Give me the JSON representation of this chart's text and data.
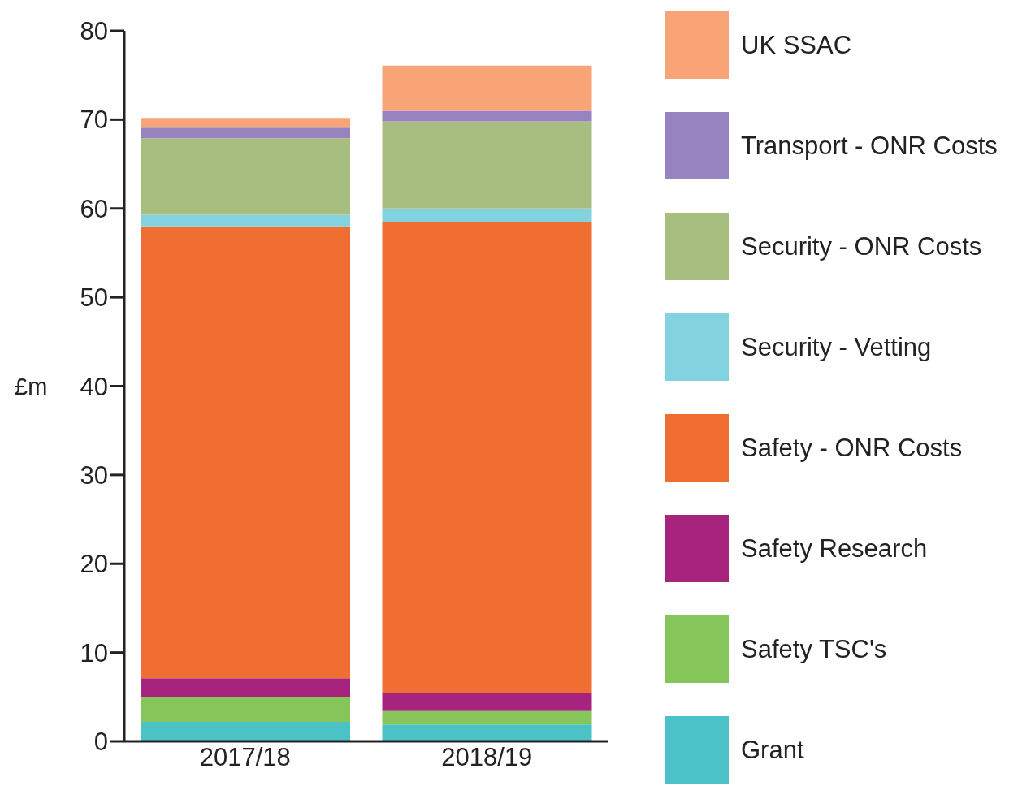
{
  "chart_data": {
    "type": "bar",
    "stacked": true,
    "ylabel": "£m",
    "categories": [
      "2017/18",
      "2018/19"
    ],
    "series": [
      {
        "name": "Grant",
        "color": "#4ac2c6",
        "values": [
          2.2,
          1.9
        ]
      },
      {
        "name": "Safety TSC's",
        "color": "#86c55a",
        "values": [
          2.8,
          1.5
        ]
      },
      {
        "name": "Safety Research",
        "color": "#a6247e",
        "values": [
          2.1,
          2.0
        ]
      },
      {
        "name": "Safety - ONR Costs",
        "color": "#f06e32",
        "values": [
          50.9,
          53.1
        ]
      },
      {
        "name": "Security - Vetting",
        "color": "#82d2df",
        "values": [
          1.3,
          1.5
        ]
      },
      {
        "name": "Security - ONR Costs",
        "color": "#a8be80",
        "values": [
          8.6,
          9.8
        ]
      },
      {
        "name": "Transport  - ONR Costs",
        "color": "#9683bf",
        "values": [
          1.2,
          1.2
        ]
      },
      {
        "name": "UK SSAC",
        "color": "#f8a477",
        "values": [
          1.1,
          5.1
        ]
      }
    ],
    "ylim": [
      0,
      80
    ],
    "yticks": [
      0,
      10,
      20,
      30,
      40,
      50,
      60,
      70,
      80
    ],
    "grid": false,
    "legend": "right"
  }
}
